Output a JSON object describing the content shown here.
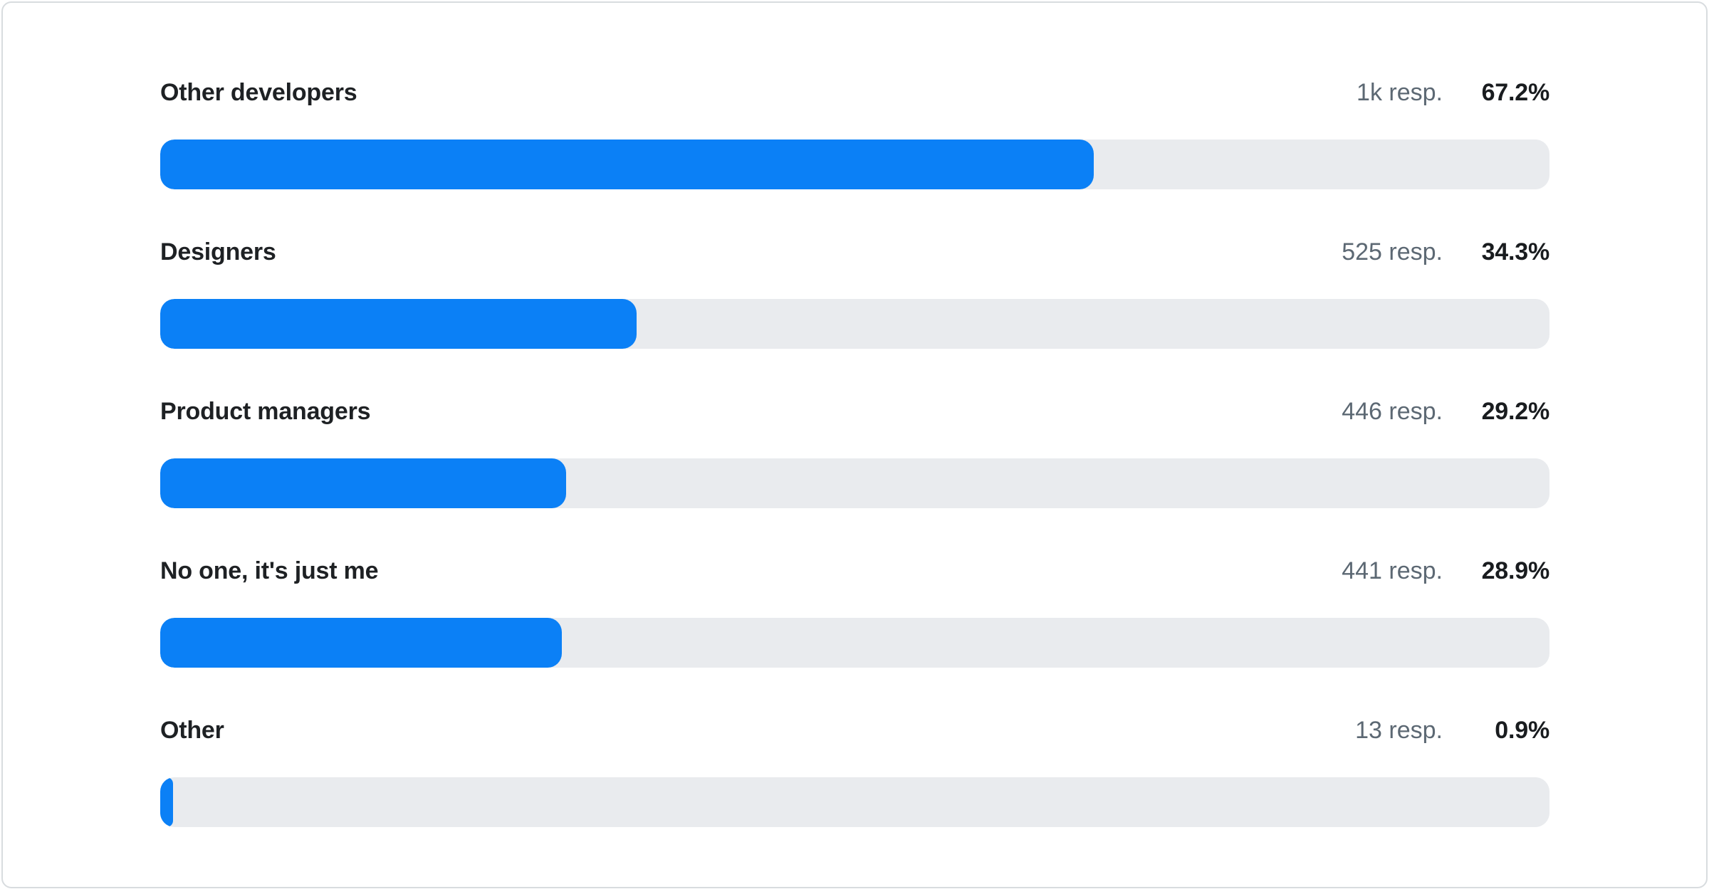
{
  "chart_data": {
    "type": "bar",
    "orientation": "horizontal",
    "title": "",
    "categories": [
      "Other developers",
      "Designers",
      "Product managers",
      "No one, it's just me",
      "Other"
    ],
    "values": [
      67.2,
      34.3,
      29.2,
      28.9,
      0.9
    ],
    "value_unit": "%",
    "response_counts": [
      "1k resp.",
      "525 resp.",
      "446 resp.",
      "441 resp.",
      "13 resp."
    ],
    "xlim": [
      0,
      100
    ],
    "grid": false,
    "legend": false,
    "bar_color": "#0b80f6",
    "track_color": "#e9ebee"
  },
  "rows": [
    {
      "label": "Other developers",
      "responses": "1k resp.",
      "percent": "67.2%"
    },
    {
      "label": "Designers",
      "responses": "525 resp.",
      "percent": "34.3%"
    },
    {
      "label": "Product managers",
      "responses": "446 resp.",
      "percent": "29.2%"
    },
    {
      "label": "No one, it's just me",
      "responses": "441 resp.",
      "percent": "28.9%"
    },
    {
      "label": "Other",
      "responses": "13 resp.",
      "percent": "0.9%"
    }
  ],
  "colors": {
    "bar_fill": "#0b80f6",
    "bar_track": "#e9ebee",
    "label_text": "#1e2124",
    "responses_text": "#5c6873",
    "percent_text": "#191c1f",
    "card_border": "#d8dcdf",
    "card_background": "#ffffff"
  }
}
